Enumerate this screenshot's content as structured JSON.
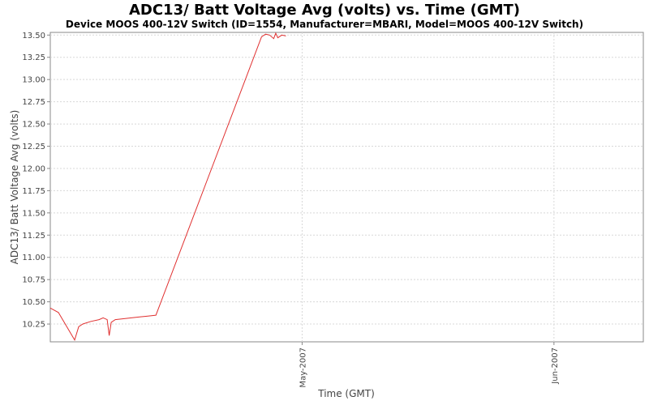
{
  "chart_data": {
    "type": "line",
    "title": "ADC13/ Batt Voltage Avg (volts) vs. Time (GMT)",
    "subtitle": "Device MOOS 400-12V Switch (ID=1554, Manufacturer=MBARI, Model=MOOS 400-12V Switch)",
    "xlabel": "Time (GMT)",
    "ylabel": "ADC13/ Batt Voltage Avg (volts)",
    "xlim": [
      "2007-03-31",
      "2007-06-12"
    ],
    "ylim": [
      10.05,
      13.53
    ],
    "yticks": [
      10.25,
      10.5,
      10.75,
      11.0,
      11.25,
      11.5,
      11.75,
      12.0,
      12.25,
      12.5,
      12.75,
      13.0,
      13.25,
      13.5
    ],
    "xticks": [
      {
        "date": "2007-05-01",
        "label": "May-2007"
      },
      {
        "date": "2007-06-01",
        "label": "Jun-2007"
      }
    ],
    "grid": true,
    "color": "#e03030",
    "series": [
      {
        "name": "",
        "points": [
          [
            "2007-03-31",
            10.43
          ],
          [
            "2007-04-01",
            10.38
          ],
          [
            "2007-04-03",
            10.07
          ],
          [
            "2007-04-03T12:00",
            10.22
          ],
          [
            "2007-04-04",
            10.25
          ],
          [
            "2007-04-05",
            10.28
          ],
          [
            "2007-04-06",
            10.3
          ],
          [
            "2007-04-06T12:00",
            10.32
          ],
          [
            "2007-04-07",
            10.3
          ],
          [
            "2007-04-07T06:00",
            10.12
          ],
          [
            "2007-04-07T12:00",
            10.27
          ],
          [
            "2007-04-08",
            10.3
          ],
          [
            "2007-04-09",
            10.31
          ],
          [
            "2007-04-10",
            10.32
          ],
          [
            "2007-04-11",
            10.33
          ],
          [
            "2007-04-12",
            10.34
          ],
          [
            "2007-04-13",
            10.35
          ],
          [
            "2007-04-26",
            13.48
          ],
          [
            "2007-04-26T12:00",
            13.51
          ],
          [
            "2007-04-27",
            13.5
          ],
          [
            "2007-04-27T12:00",
            13.46
          ],
          [
            "2007-04-27T18:00",
            13.52
          ],
          [
            "2007-04-28",
            13.47
          ],
          [
            "2007-04-28T12:00",
            13.5
          ],
          [
            "2007-04-29",
            13.49
          ]
        ]
      }
    ]
  }
}
